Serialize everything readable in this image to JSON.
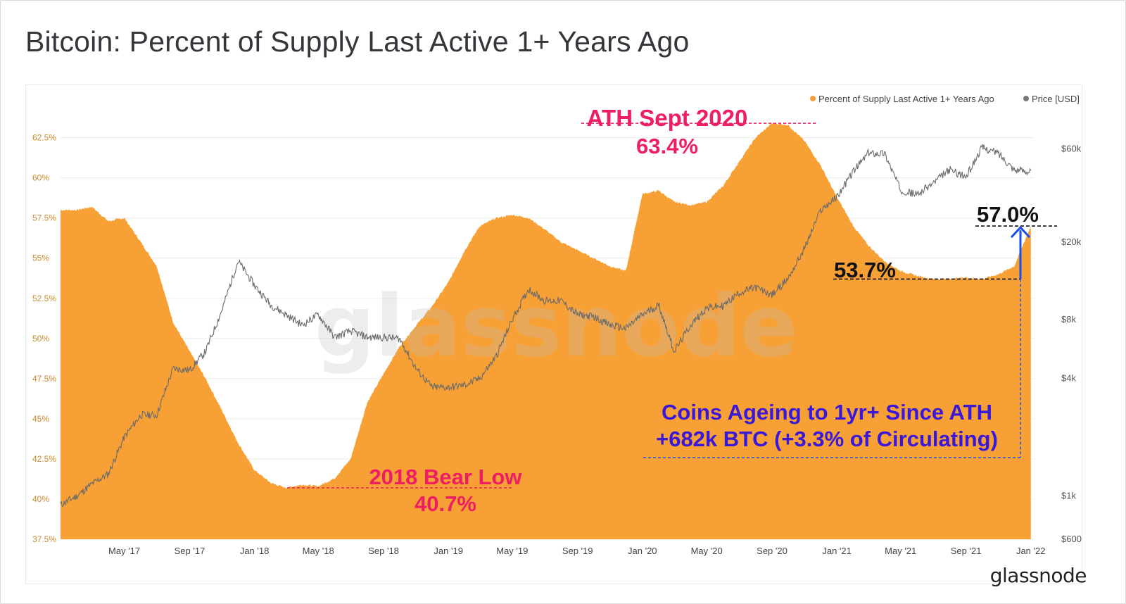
{
  "page": {
    "title": "Bitcoin: Percent of Supply Last Active 1+ Years Ago",
    "brand": "glassnode",
    "watermark": "glassnode"
  },
  "colors": {
    "supply": "#f7a035",
    "price": "#6b6b6b",
    "annotation_pink": "#ee1d64",
    "annotation_purple": "#3a18d9",
    "annotation_black": "#111111",
    "arrow_blue": "#1a4fe6"
  },
  "chart_data": {
    "type": "area",
    "title": "Bitcoin: Percent of Supply Last Active 1+ Years Ago",
    "legend_position": "top-right",
    "grid": true,
    "x_ticks": [
      "May '17",
      "Sep '17",
      "Jan '18",
      "May '18",
      "Sep '18",
      "Jan '19",
      "May '19",
      "Sep '19",
      "Jan '20",
      "May '20",
      "Sep '20",
      "Jan '21",
      "May '21",
      "Sep '21",
      "Jan '22"
    ],
    "y_left": {
      "ticks": [
        "37.5%",
        "40%",
        "42.5%",
        "45%",
        "47.5%",
        "50%",
        "52.5%",
        "55%",
        "57.5%",
        "60%",
        "62.5%"
      ],
      "range": [
        37.5,
        64.5
      ]
    },
    "y_right": {
      "scale": "log",
      "ticks": [
        "$600",
        "$1k",
        "$4k",
        "$8k",
        "$20k",
        "$60k"
      ],
      "range": [
        600,
        100000
      ]
    },
    "series": [
      {
        "name": "Percent of Supply Last Active 1+ Years Ago",
        "points": [
          [
            "2017-01-01",
            58.0
          ],
          [
            "2017-02-01",
            58.0
          ],
          [
            "2017-03-01",
            58.2
          ],
          [
            "2017-04-01",
            57.3
          ],
          [
            "2017-05-01",
            57.5
          ],
          [
            "2017-06-01",
            56.0
          ],
          [
            "2017-07-01",
            54.5
          ],
          [
            "2017-08-01",
            51.0
          ],
          [
            "2017-09-01",
            49.2
          ],
          [
            "2017-10-01",
            47.5
          ],
          [
            "2017-11-01",
            45.5
          ],
          [
            "2017-12-01",
            43.5
          ],
          [
            "2018-01-01",
            41.8
          ],
          [
            "2018-02-01",
            41.0
          ],
          [
            "2018-03-01",
            40.7
          ],
          [
            "2018-04-01",
            40.9
          ],
          [
            "2018-05-01",
            40.8
          ],
          [
            "2018-06-01",
            41.3
          ],
          [
            "2018-07-01",
            42.5
          ],
          [
            "2018-08-01",
            46.0
          ],
          [
            "2018-09-01",
            47.8
          ],
          [
            "2018-10-01",
            49.5
          ],
          [
            "2018-11-01",
            50.8
          ],
          [
            "2018-12-01",
            52.0
          ],
          [
            "2019-01-01",
            53.5
          ],
          [
            "2019-02-01",
            55.5
          ],
          [
            "2019-03-01",
            57.0
          ],
          [
            "2019-04-01",
            57.5
          ],
          [
            "2019-05-01",
            57.7
          ],
          [
            "2019-06-01",
            57.5
          ],
          [
            "2019-07-01",
            56.8
          ],
          [
            "2019-08-01",
            56.0
          ],
          [
            "2019-09-01",
            55.5
          ],
          [
            "2019-10-01",
            55.0
          ],
          [
            "2019-11-01",
            54.5
          ],
          [
            "2019-12-01",
            54.2
          ],
          [
            "2020-01-01",
            59.0
          ],
          [
            "2020-02-01",
            59.2
          ],
          [
            "2020-03-01",
            58.5
          ],
          [
            "2020-04-01",
            58.3
          ],
          [
            "2020-05-01",
            58.5
          ],
          [
            "2020-06-01",
            59.5
          ],
          [
            "2020-07-01",
            61.0
          ],
          [
            "2020-08-01",
            62.5
          ],
          [
            "2020-09-01",
            63.4
          ],
          [
            "2020-10-01",
            63.3
          ],
          [
            "2020-11-01",
            62.3
          ],
          [
            "2020-12-01",
            60.8
          ],
          [
            "2021-01-01",
            58.8
          ],
          [
            "2021-02-01",
            57.0
          ],
          [
            "2021-03-01",
            55.8
          ],
          [
            "2021-04-01",
            54.8
          ],
          [
            "2021-05-01",
            54.2
          ],
          [
            "2021-06-01",
            53.9
          ],
          [
            "2021-07-01",
            53.7
          ],
          [
            "2021-08-01",
            53.7
          ],
          [
            "2021-09-01",
            53.8
          ],
          [
            "2021-10-01",
            53.7
          ],
          [
            "2021-11-01",
            54.0
          ],
          [
            "2021-12-01",
            54.5
          ],
          [
            "2022-01-01",
            57.0
          ]
        ]
      },
      {
        "name": "Price [USD]",
        "points": [
          [
            "2017-01-01",
            900
          ],
          [
            "2017-02-01",
            1000
          ],
          [
            "2017-03-01",
            1150
          ],
          [
            "2017-04-01",
            1300
          ],
          [
            "2017-05-01",
            2000
          ],
          [
            "2017-06-01",
            2600
          ],
          [
            "2017-07-01",
            2600
          ],
          [
            "2017-08-01",
            4500
          ],
          [
            "2017-09-01",
            4400
          ],
          [
            "2017-10-01",
            5500
          ],
          [
            "2017-11-01",
            9000
          ],
          [
            "2017-12-01",
            16000
          ],
          [
            "2018-01-01",
            12000
          ],
          [
            "2018-02-01",
            9500
          ],
          [
            "2018-03-01",
            8500
          ],
          [
            "2018-04-01",
            7500
          ],
          [
            "2018-05-01",
            8500
          ],
          [
            "2018-06-01",
            6500
          ],
          [
            "2018-07-01",
            7000
          ],
          [
            "2018-08-01",
            6500
          ],
          [
            "2018-09-01",
            6500
          ],
          [
            "2018-10-01",
            6400
          ],
          [
            "2018-11-01",
            4500
          ],
          [
            "2018-12-01",
            3600
          ],
          [
            "2019-01-01",
            3600
          ],
          [
            "2019-02-01",
            3700
          ],
          [
            "2019-03-01",
            4000
          ],
          [
            "2019-04-01",
            5200
          ],
          [
            "2019-05-01",
            8000
          ],
          [
            "2019-06-01",
            11500
          ],
          [
            "2019-07-01",
            10000
          ],
          [
            "2019-08-01",
            10000
          ],
          [
            "2019-09-01",
            8500
          ],
          [
            "2019-10-01",
            8300
          ],
          [
            "2019-11-01",
            7500
          ],
          [
            "2019-12-01",
            7200
          ],
          [
            "2020-01-01",
            8500
          ],
          [
            "2020-02-01",
            9500
          ],
          [
            "2020-03-01",
            5500
          ],
          [
            "2020-04-01",
            7500
          ],
          [
            "2020-05-01",
            9200
          ],
          [
            "2020-06-01",
            9400
          ],
          [
            "2020-07-01",
            11000
          ],
          [
            "2020-08-01",
            11700
          ],
          [
            "2020-09-01",
            10700
          ],
          [
            "2020-10-01",
            13000
          ],
          [
            "2020-11-01",
            18500
          ],
          [
            "2020-12-01",
            29000
          ],
          [
            "2021-01-01",
            34000
          ],
          [
            "2021-02-01",
            46000
          ],
          [
            "2021-03-01",
            57000
          ],
          [
            "2021-04-01",
            57000
          ],
          [
            "2021-05-01",
            37000
          ],
          [
            "2021-06-01",
            35000
          ],
          [
            "2021-07-01",
            40000
          ],
          [
            "2021-08-01",
            47000
          ],
          [
            "2021-09-01",
            43000
          ],
          [
            "2021-10-01",
            61000
          ],
          [
            "2021-11-01",
            57000
          ],
          [
            "2021-12-01",
            47000
          ],
          [
            "2022-01-01",
            46000
          ]
        ]
      }
    ],
    "annotations": [
      {
        "label": "ATH Sept 2020",
        "value": "63.4%"
      },
      {
        "label": "2018 Bear Low",
        "value": "40.7%"
      },
      {
        "value": "53.7%"
      },
      {
        "value": "57.0%"
      },
      {
        "label": "Coins Ageing to 1yr+ Since ATH",
        "value": "+682k BTC (+3.3% of Circulating)"
      }
    ]
  }
}
